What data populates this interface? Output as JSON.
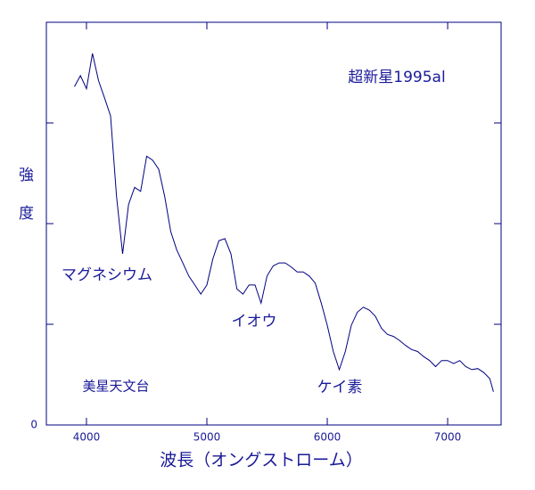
{
  "chart_data": {
    "type": "line",
    "title": "超新星1995al",
    "xlabel": "波長（オングストローム）",
    "ylabel": "強度",
    "annotations": [
      "マグネシウム",
      "イオウ",
      "ケイ素",
      "美星天文台"
    ],
    "color": "#000080",
    "xlim": [
      3667,
      7444
    ],
    "xticks": [
      4000,
      5000,
      6000,
      7000
    ],
    "ylim": [
      0,
      4
    ],
    "yticks": [
      0
    ],
    "yminor_ticks": [
      1,
      2,
      3
    ],
    "x": [
      3900,
      3950,
      4000,
      4050,
      4100,
      4150,
      4200,
      4250,
      4300,
      4350,
      4400,
      4450,
      4500,
      4550,
      4600,
      4650,
      4700,
      4750,
      4800,
      4850,
      4900,
      4950,
      5000,
      5050,
      5100,
      5150,
      5200,
      5250,
      5300,
      5350,
      5400,
      5450,
      5500,
      5550,
      5600,
      5650,
      5700,
      5750,
      5800,
      5850,
      5900,
      5950,
      6000,
      6050,
      6100,
      6150,
      6200,
      6250,
      6300,
      6350,
      6400,
      6450,
      6500,
      6550,
      6600,
      6650,
      6700,
      6750,
      6800,
      6850,
      6900,
      6950,
      7000,
      7050,
      7100,
      7150,
      7200,
      7250,
      7300,
      7350,
      7380
    ],
    "values": [
      3.36,
      3.47,
      3.34,
      3.69,
      3.42,
      3.25,
      3.07,
      2.27,
      1.7,
      2.19,
      2.36,
      2.32,
      2.67,
      2.63,
      2.54,
      2.27,
      1.92,
      1.74,
      1.61,
      1.48,
      1.39,
      1.3,
      1.39,
      1.65,
      1.83,
      1.85,
      1.7,
      1.35,
      1.3,
      1.39,
      1.39,
      1.21,
      1.48,
      1.58,
      1.61,
      1.61,
      1.57,
      1.52,
      1.52,
      1.48,
      1.41,
      1.21,
      0.99,
      0.73,
      0.55,
      0.73,
      0.99,
      1.12,
      1.17,
      1.14,
      1.08,
      0.96,
      0.9,
      0.88,
      0.84,
      0.79,
      0.75,
      0.73,
      0.68,
      0.64,
      0.58,
      0.64,
      0.64,
      0.61,
      0.64,
      0.58,
      0.55,
      0.56,
      0.52,
      0.46,
      0.33
    ]
  }
}
